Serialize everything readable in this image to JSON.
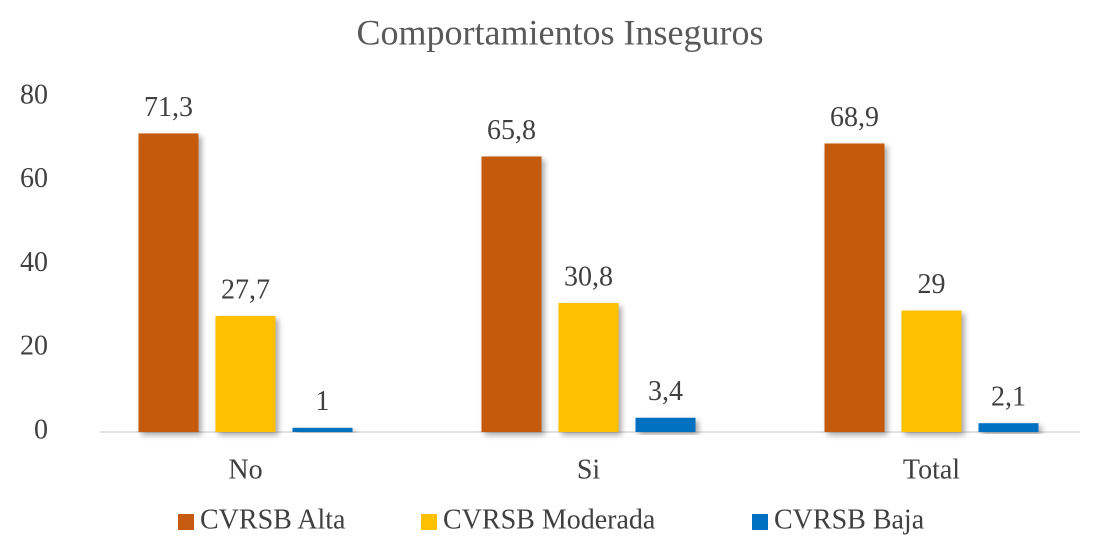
{
  "chart_data": {
    "type": "bar",
    "title": "Comportamientos Inseguros",
    "categories": [
      "No",
      "Si",
      "Total"
    ],
    "series": [
      {
        "name": "CVRSB Alta",
        "color": "#C55A11",
        "values": [
          71.3,
          65.8,
          68.9
        ],
        "value_labels": [
          "71,3",
          "65,8",
          "68,9"
        ]
      },
      {
        "name": "CVRSB Moderada",
        "color": "#FFC000",
        "values": [
          27.7,
          30.8,
          29
        ],
        "value_labels": [
          "27,7",
          "30,8",
          "29"
        ]
      },
      {
        "name": "CVRSB Baja",
        "color": "#0070C0",
        "values": [
          1,
          3.4,
          2.1
        ],
        "value_labels": [
          "1",
          "3,4",
          "2,1"
        ]
      }
    ],
    "ylim": [
      0,
      80
    ],
    "yticks": [
      0,
      20,
      40,
      60,
      80
    ],
    "grid": false,
    "legend": "bottom"
  }
}
